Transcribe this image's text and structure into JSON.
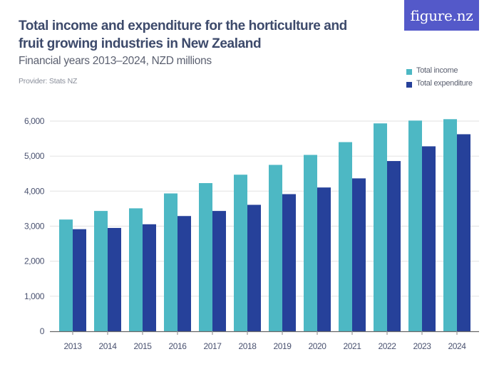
{
  "header": {
    "title": "Total income and expenditure for the horticulture and fruit growing industries in New Zealand",
    "subtitle": "Financial years 2013–2024, NZD millions",
    "provider": "Provider: Stats NZ",
    "logo_text": "figure.nz"
  },
  "colors": {
    "income": "#4db8c4",
    "expenditure": "#26419a",
    "logo_bg": "#5459c9",
    "grid": "#e6e6e6",
    "axis": "#666666"
  },
  "chart_data": {
    "type": "bar",
    "title": "Total income and expenditure for the horticulture and fruit growing industries in New Zealand",
    "subtitle": "Financial years 2013–2024, NZD millions",
    "xlabel": "",
    "ylabel": "",
    "categories": [
      "2013",
      "2014",
      "2015",
      "2016",
      "2017",
      "2018",
      "2019",
      "2020",
      "2021",
      "2022",
      "2023",
      "2024"
    ],
    "series": [
      {
        "name": "Total income",
        "values": [
          3190,
          3435,
          3510,
          3935,
          4230,
          4470,
          4750,
          5035,
          5400,
          5935,
          6015,
          6055
        ]
      },
      {
        "name": "Total expenditure",
        "values": [
          2915,
          2950,
          3055,
          3290,
          3435,
          3610,
          3915,
          4105,
          4365,
          4860,
          5280,
          5625
        ]
      }
    ],
    "ylim": [
      0,
      6000
    ],
    "yticks": [
      0,
      1000,
      2000,
      3000,
      4000,
      5000,
      6000
    ],
    "ytick_labels": [
      "0",
      "1,000",
      "2,000",
      "3,000",
      "4,000",
      "5,000",
      "6,000"
    ],
    "grid": true,
    "legend_position": "top-right"
  }
}
